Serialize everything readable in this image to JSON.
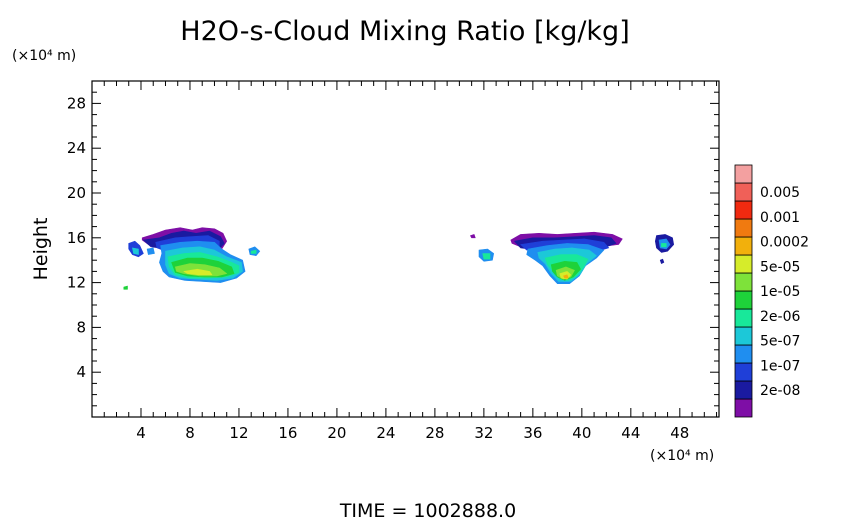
{
  "chart_data": {
    "type": "heatmap",
    "title": "H2O-s-Cloud Mixing Ratio [kg/kg]",
    "ylabel": "Height",
    "x_unit": "(×10⁴ m)",
    "y_unit": "(×10⁴ m)",
    "footer": "TIME = 1002888.0",
    "xlim": [
      0,
      51.2
    ],
    "ylim": [
      0,
      30
    ],
    "x_ticks": [
      "4",
      "8",
      "12",
      "16",
      "20",
      "24",
      "28",
      "32",
      "36",
      "40",
      "44",
      "48"
    ],
    "y_ticks": [
      "4",
      "8",
      "12",
      "16",
      "20",
      "24",
      "28"
    ],
    "colorbar": {
      "labels": [
        "0.005",
        "0.001",
        "0.0002",
        "5e-05",
        "1e-05",
        "2e-06",
        "5e-07",
        "1e-07",
        "2e-08"
      ],
      "colors": [
        "#7e0ea6",
        "#1a1aa0",
        "#1f3fd8",
        "#1f8ef0",
        "#1cc8d8",
        "#18e89a",
        "#1ed23a",
        "#7ee23a",
        "#d6ec2a",
        "#f2b00c",
        "#f07a10",
        "#f02a10",
        "#f06058",
        "#f3a0a0"
      ]
    },
    "cloud_regions": [
      {
        "name": "west",
        "x_range": [
          3,
          14
        ],
        "y_range": [
          11.5,
          17
        ],
        "max_level": "0.0002"
      },
      {
        "name": "east",
        "x_range": [
          31.5,
          47.5
        ],
        "y_range": [
          11.5,
          16.5
        ],
        "max_level": "0.0002"
      }
    ]
  }
}
